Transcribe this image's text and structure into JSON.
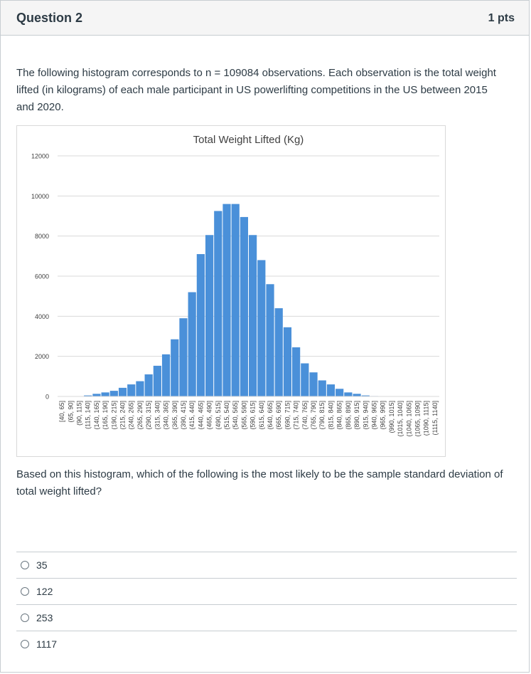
{
  "question": {
    "title": "Question 2",
    "points": "1 pts",
    "intro": "The following histogram corresponds to n = 109084 observations. Each observation is the total weight lifted (in kilograms) of each male participant in US powerlifting competitions in the US between 2015 and 2020.",
    "prompt": "Based on this histogram, which of the following is the most likely to be the sample standard deviation of total weight lifted?",
    "answers": [
      {
        "label": "35"
      },
      {
        "label": "122"
      },
      {
        "label": "253"
      },
      {
        "label": "1117"
      }
    ]
  },
  "chart_data": {
    "type": "bar",
    "title": "Total Weight Lifted (Kg)",
    "xlabel": "",
    "ylabel": "",
    "ylim": [
      0,
      12000
    ],
    "yticks": [
      0,
      2000,
      4000,
      6000,
      8000,
      10000,
      12000
    ],
    "grid": true,
    "bar_color": "#4a90d9",
    "categories": [
      "[40, 65]",
      "(65, 90]",
      "(90, 115]",
      "(115, 140]",
      "(140, 165]",
      "(165, 190]",
      "(190, 215]",
      "(215, 240]",
      "(240, 265]",
      "(265, 290]",
      "(290, 315]",
      "(315, 340]",
      "(340, 365]",
      "(365, 390]",
      "(390, 415]",
      "(415, 440]",
      "(440, 465]",
      "(465, 490]",
      "(490, 515]",
      "(515, 540]",
      "(540, 565]",
      "(565, 590]",
      "(590, 615]",
      "(615, 640]",
      "(640, 665]",
      "(665, 690]",
      "(690, 715]",
      "(715, 740]",
      "(740, 765]",
      "(765, 790]",
      "(790, 815]",
      "(815, 840]",
      "(840, 865]",
      "(865, 890]",
      "(890, 915]",
      "(915, 940]",
      "(940, 965]",
      "(965, 990]",
      "(990, 1015]",
      "(1015, 1040]",
      "(1040, 1065]",
      "(1065, 1090]",
      "(1090, 1115]",
      "(1115, 1140]"
    ],
    "values": [
      0,
      0,
      0,
      50,
      130,
      200,
      280,
      430,
      600,
      760,
      1100,
      1530,
      2100,
      2850,
      3900,
      5200,
      7100,
      8050,
      9250,
      9600,
      9600,
      8950,
      8050,
      6800,
      5600,
      4400,
      3450,
      2450,
      1650,
      1200,
      800,
      600,
      380,
      200,
      130,
      50,
      20,
      0,
      0,
      0,
      0,
      0,
      0,
      0
    ]
  }
}
